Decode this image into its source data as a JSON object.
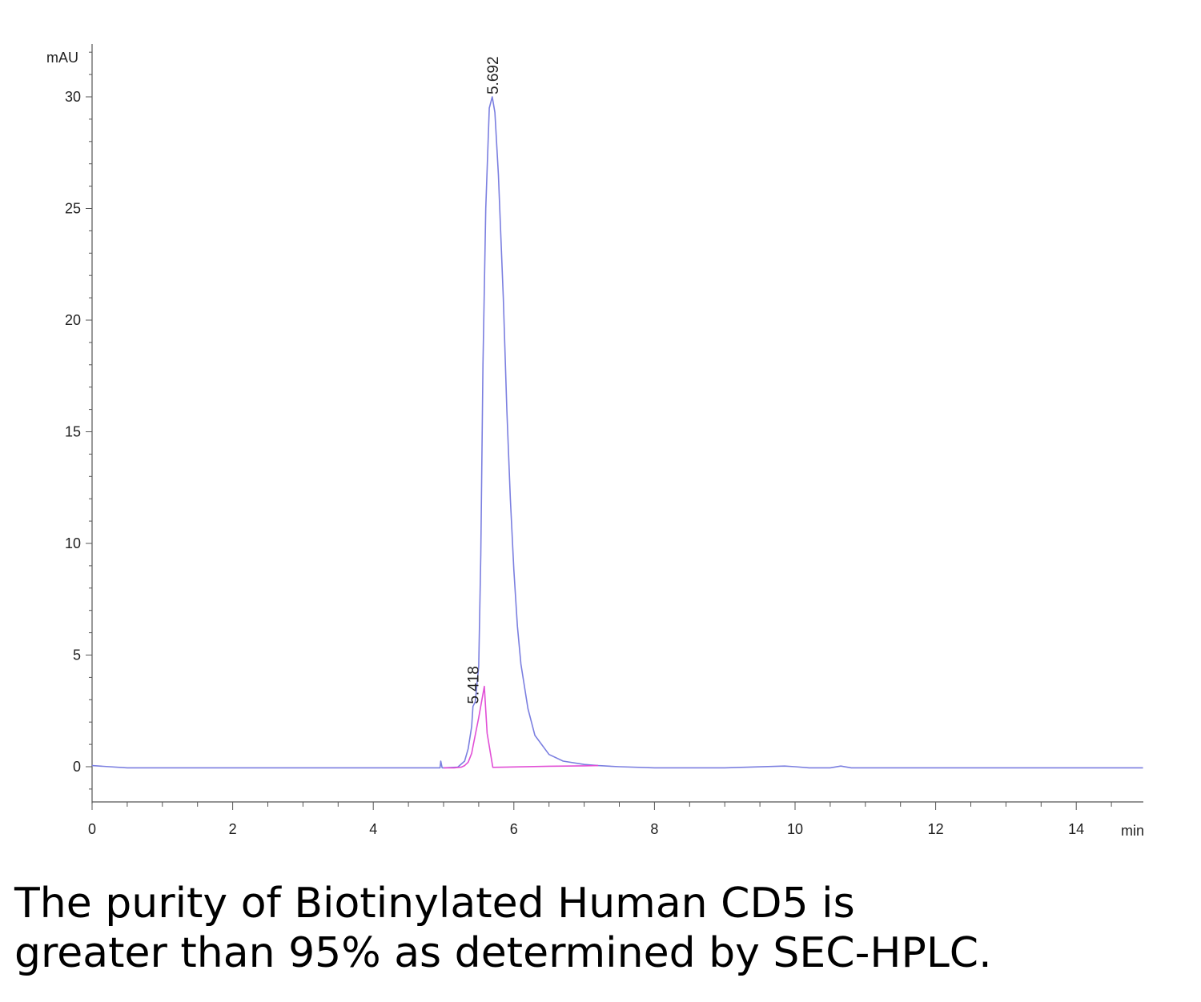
{
  "chart_data": {
    "type": "line",
    "y_unit_label": "mAU",
    "x_unit_label": "min",
    "xlim": [
      0,
      14.95
    ],
    "ylim": [
      -1.6,
      32.5
    ],
    "x_ticks": [
      0,
      2,
      4,
      6,
      8,
      10,
      12,
      14
    ],
    "y_ticks": [
      0,
      5,
      10,
      15,
      20,
      25,
      30
    ],
    "x_tick_labels": [
      "0",
      "2",
      "4",
      "6",
      "8",
      "10",
      "12",
      "14"
    ],
    "y_tick_labels": [
      "0",
      "5",
      "10",
      "15",
      "20",
      "25",
      "30"
    ],
    "grid": false,
    "series": [
      {
        "color": "#7b7fe0",
        "x": [
          0,
          0.5,
          1,
          2,
          3,
          4,
          4.95,
          4.96,
          4.98,
          5.0,
          5.2,
          5.3,
          5.35,
          5.4,
          5.418,
          5.45,
          5.5,
          5.53,
          5.56,
          5.6,
          5.65,
          5.692,
          5.73,
          5.78,
          5.85,
          5.9,
          5.95,
          6.0,
          6.05,
          6.1,
          6.2,
          6.3,
          6.5,
          6.7,
          7.0,
          7.2,
          7.5,
          8.0,
          9.0,
          9.85,
          10.0,
          10.2,
          10.5,
          10.65,
          10.8,
          11.0,
          12.0,
          13.0,
          14.0,
          14.95
        ],
        "y": [
          0.05,
          -0.05,
          -0.05,
          -0.05,
          -0.05,
          -0.05,
          -0.05,
          0.25,
          -0.05,
          -0.05,
          -0.02,
          0.25,
          0.8,
          1.8,
          2.7,
          2.9,
          4.5,
          9.5,
          18.0,
          25.0,
          29.5,
          30.0,
          29.3,
          26.5,
          21.0,
          16.0,
          12.0,
          8.8,
          6.3,
          4.6,
          2.6,
          1.4,
          0.55,
          0.25,
          0.1,
          0.05,
          0.0,
          -0.05,
          -0.05,
          0.03,
          0.0,
          -0.05,
          -0.05,
          0.03,
          -0.05,
          -0.05,
          -0.05,
          -0.05,
          -0.05,
          -0.05
        ]
      },
      {
        "color": "#e14fd6",
        "x": [
          5.0,
          5.15,
          5.25,
          5.3,
          5.35,
          5.4,
          5.418,
          5.5,
          5.58,
          5.62,
          5.7,
          6.0,
          6.5,
          7.0,
          7.2
        ],
        "y": [
          -0.05,
          -0.05,
          -0.02,
          0.05,
          0.2,
          0.6,
          0.9,
          2.2,
          3.6,
          1.5,
          -0.03,
          -0.01,
          0.02,
          0.04,
          0.05
        ]
      }
    ],
    "peak_labels": [
      {
        "x": 5.692,
        "y": 30.0,
        "text": "5.692"
      },
      {
        "x": 5.418,
        "y": 2.7,
        "text": "5.418"
      }
    ]
  },
  "caption": {
    "line1": "The purity of Biotinylated Human CD5 is",
    "line2": "greater than 95% as determined by SEC-HPLC."
  }
}
